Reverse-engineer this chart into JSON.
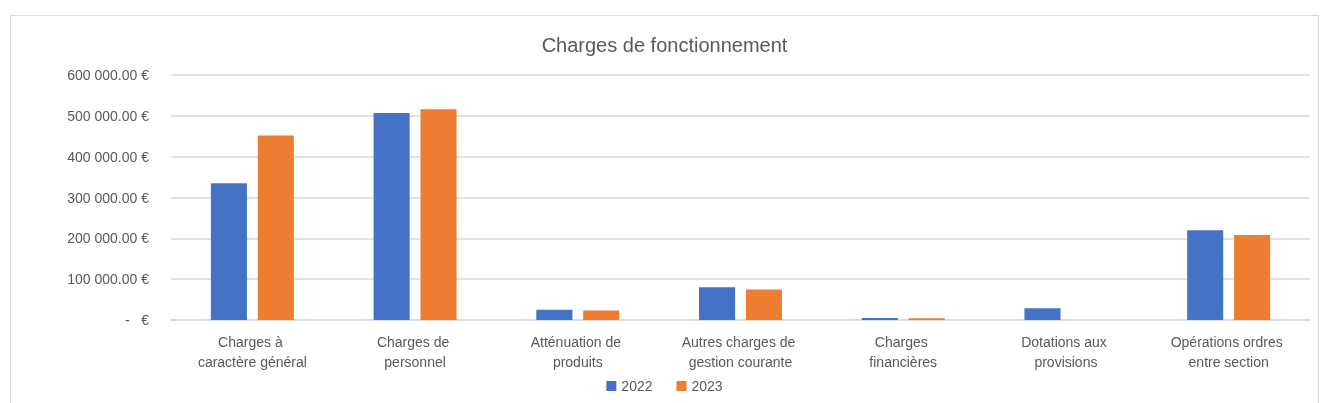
{
  "chart_data": {
    "type": "bar",
    "title": "Charges de fonctionnement",
    "categories": [
      "Charges à caractère général",
      "Charges de personnel",
      "Atténuation de produits",
      "Autres charges de gestion courante",
      "Charges financières",
      "Dotations aux provisions",
      "Opérations ordres entre section"
    ],
    "series": [
      {
        "name": "2022",
        "color": "#4472c4",
        "values": [
          335000,
          507000,
          25000,
          80000,
          5000,
          29000,
          220000
        ]
      },
      {
        "name": "2023",
        "color": "#ed7d31",
        "values": [
          452000,
          516000,
          23000,
          75000,
          4000,
          null,
          208000
        ]
      }
    ],
    "ylim": [
      0,
      600000
    ],
    "yticks": [
      {
        "value": 0,
        "label": "-   €"
      },
      {
        "value": 100000,
        "label": "100 000.00 €"
      },
      {
        "value": 200000,
        "label": "200 000.00 €"
      },
      {
        "value": 300000,
        "label": "300 000.00 €"
      },
      {
        "value": 400000,
        "label": "400 000.00 €"
      },
      {
        "value": 500000,
        "label": "500 000.00 €"
      },
      {
        "value": 600000,
        "label": "600 000.00 €"
      }
    ],
    "grid": "y",
    "legend": "bottom"
  }
}
